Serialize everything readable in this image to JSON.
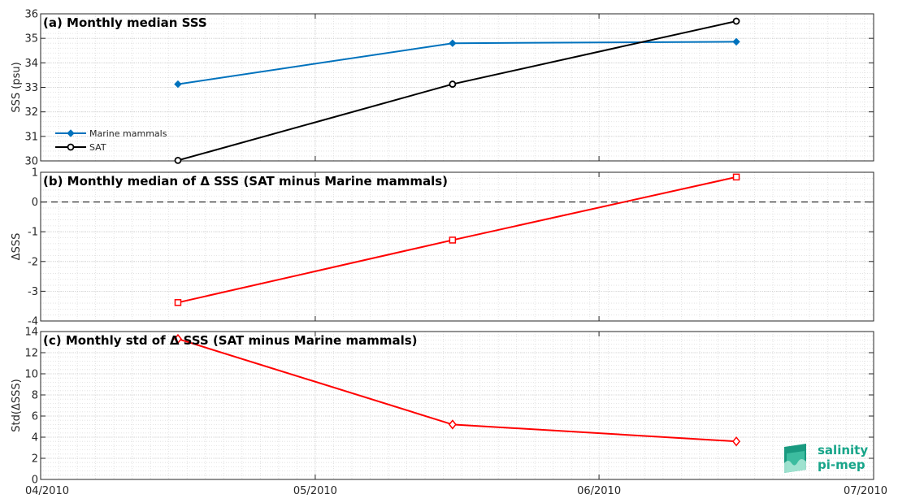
{
  "chart_data": [
    {
      "type": "line",
      "title": "(a) Monthly median SSS",
      "ylabel": "SSS (psu)",
      "ylim": [
        30,
        36
      ],
      "yticks": [
        30,
        31,
        32,
        33,
        34,
        35,
        36
      ],
      "x": [
        "2010-04-16",
        "2010-05-16",
        "2010-06-16"
      ],
      "series": [
        {
          "name": "Marine mammals",
          "values": [
            33.13,
            34.8,
            34.86
          ],
          "color": "#0072BD",
          "marker": "diamond-filled"
        },
        {
          "name": "SAT",
          "values": [
            30.02,
            33.13,
            35.7
          ],
          "color": "#000000",
          "marker": "circle-open"
        }
      ],
      "legend": "bottom-left",
      "grid": true
    },
    {
      "type": "line",
      "title": "(b) Monthly median of Δ SSS (SAT minus Marine mammals)",
      "ylabel": "ΔSSS",
      "ylim": [
        -4,
        1
      ],
      "yticks": [
        -4,
        -3,
        -2,
        -1,
        0,
        1
      ],
      "x": [
        "2010-04-16",
        "2010-05-16",
        "2010-06-16"
      ],
      "series": [
        {
          "values": [
            -3.38,
            -1.28,
            0.84
          ],
          "color": "#FF0000",
          "marker": "square-open"
        }
      ],
      "reference_line": 0,
      "grid": true
    },
    {
      "type": "line",
      "title": "(c) Monthly std of Δ SSS (SAT minus Marine mammals)",
      "ylabel": "Std(ΔSSS)",
      "ylim": [
        0,
        14
      ],
      "yticks": [
        0,
        2,
        4,
        6,
        8,
        10,
        12,
        14
      ],
      "x": [
        "2010-04-16",
        "2010-05-16",
        "2010-06-16"
      ],
      "xlim": [
        "2010-04-01",
        "2010-07-01"
      ],
      "xticks": [
        {
          "date": "2010-04-01",
          "label": "04/2010"
        },
        {
          "date": "2010-05-01",
          "label": "05/2010"
        },
        {
          "date": "2010-06-01",
          "label": "06/2010"
        },
        {
          "date": "2010-07-01",
          "label": "07/2010"
        }
      ],
      "series": [
        {
          "values": [
            13.3,
            5.2,
            3.6
          ],
          "color": "#FF0000",
          "marker": "diamond-open"
        }
      ],
      "grid": true
    }
  ],
  "logo": {
    "line1": "salinity",
    "line2": "pi-mep",
    "color": "#17a589"
  }
}
